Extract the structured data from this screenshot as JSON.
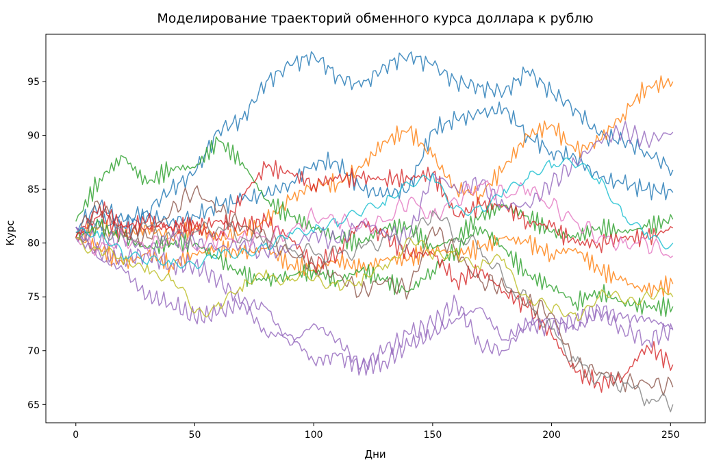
{
  "chart_data": {
    "type": "line",
    "title": "Моделирование траекторий обменного курса доллара к рублю",
    "xlabel": "Дни",
    "ylabel": "Курс",
    "xlim": [
      -12.6,
      264.6
    ],
    "ylim": [
      63.3,
      99.4
    ],
    "xticks": [
      0,
      50,
      100,
      150,
      200,
      250
    ],
    "yticks": [
      65,
      70,
      75,
      80,
      85,
      90,
      95
    ],
    "grid": false,
    "legend": "none",
    "x": [
      0,
      10,
      20,
      30,
      40,
      50,
      60,
      70,
      80,
      90,
      100,
      110,
      120,
      130,
      140,
      150,
      160,
      170,
      180,
      190,
      200,
      210,
      220,
      230,
      240,
      251
    ],
    "series": [
      {
        "color": "#1f77b4",
        "values": [
          81.5,
          83.5,
          82.0,
          83.0,
          85.0,
          86.5,
          90.5,
          91.5,
          95.0,
          96.5,
          97.5,
          95.5,
          94.5,
          96.5,
          97.5,
          96.5,
          95.0,
          94.5,
          94.0,
          96.0,
          94.0,
          92.5,
          90.0,
          89.5,
          88.5,
          86.8
        ]
      },
      {
        "color": "#1f77b4",
        "values": [
          80.5,
          82.0,
          81.5,
          82.5,
          82.0,
          82.5,
          83.5,
          84.0,
          84.5,
          85.5,
          87.5,
          87.5,
          85.0,
          84.5,
          85.0,
          90.5,
          91.5,
          92.0,
          92.5,
          90.0,
          88.5,
          88.0,
          86.0,
          85.5,
          85.0,
          84.7
        ]
      },
      {
        "color": "#ff7f0e",
        "values": [
          80.5,
          81.5,
          80.5,
          81.5,
          80.5,
          81.5,
          80.5,
          81.0,
          82.0,
          84.0,
          85.5,
          85.5,
          87.0,
          89.5,
          90.5,
          88.0,
          85.0,
          84.5,
          87.0,
          90.0,
          91.0,
          88.5,
          89.5,
          92.0,
          94.5,
          95.0
        ]
      },
      {
        "color": "#ff7f0e",
        "values": [
          80.5,
          79.5,
          78.0,
          79.0,
          78.0,
          79.0,
          79.5,
          79.0,
          79.5,
          78.0,
          77.5,
          78.5,
          77.5,
          78.5,
          78.5,
          79.5,
          79.0,
          79.5,
          80.5,
          80.0,
          79.0,
          79.5,
          77.5,
          76.5,
          75.5,
          76.2
        ]
      },
      {
        "color": "#2ca02c",
        "values": [
          82.0,
          86.0,
          88.0,
          85.5,
          87.0,
          87.0,
          89.5,
          87.5,
          84.0,
          82.5,
          81.5,
          80.5,
          80.0,
          81.5,
          81.5,
          79.5,
          80.5,
          82.5,
          83.5,
          82.5,
          81.0,
          80.5,
          81.5,
          81.0,
          81.5,
          82.2
        ]
      },
      {
        "color": "#2ca02c",
        "values": [
          80.5,
          81.5,
          80.5,
          79.5,
          80.0,
          80.0,
          78.5,
          77.0,
          76.5,
          77.0,
          77.5,
          76.5,
          77.5,
          76.5,
          75.5,
          77.5,
          79.5,
          81.5,
          79.5,
          77.0,
          76.0,
          74.5,
          75.5,
          74.5,
          74.0,
          74.1
        ]
      },
      {
        "color": "#d62728",
        "values": [
          80.5,
          83.5,
          81.5,
          82.0,
          81.5,
          81.5,
          80.5,
          84.5,
          87.0,
          86.5,
          85.5,
          86.0,
          86.0,
          86.0,
          86.0,
          86.5,
          82.5,
          83.5,
          83.5,
          82.0,
          81.5,
          80.0,
          80.0,
          80.5,
          80.5,
          81.4
        ]
      },
      {
        "color": "#d62728",
        "values": [
          80.5,
          82.5,
          81.0,
          81.5,
          81.5,
          81.5,
          82.0,
          81.5,
          82.0,
          80.5,
          78.0,
          79.0,
          82.0,
          80.5,
          79.0,
          79.0,
          76.5,
          77.5,
          75.5,
          74.0,
          71.5,
          68.0,
          67.0,
          67.5,
          70.5,
          68.7
        ]
      },
      {
        "color": "#9467bd",
        "values": [
          81.5,
          78.5,
          77.5,
          75.0,
          74.5,
          73.0,
          73.5,
          74.5,
          71.5,
          71.5,
          69.0,
          69.5,
          68.5,
          69.0,
          70.5,
          71.5,
          73.0,
          74.0,
          71.0,
          72.5,
          72.0,
          73.0,
          74.0,
          73.0,
          73.0,
          72.1
        ]
      },
      {
        "color": "#9467bd",
        "values": [
          80.5,
          79.0,
          78.5,
          79.0,
          78.0,
          78.0,
          76.5,
          74.5,
          74.0,
          70.5,
          72.5,
          71.0,
          68.5,
          70.0,
          71.5,
          72.5,
          74.5,
          70.5,
          70.0,
          72.5,
          73.0,
          72.0,
          73.5,
          72.0,
          71.0,
          71.9
        ]
      },
      {
        "color": "#9467bd",
        "values": [
          81.5,
          80.0,
          80.5,
          79.5,
          80.5,
          80.0,
          79.5,
          80.0,
          79.0,
          79.5,
          81.0,
          80.0,
          82.0,
          81.0,
          80.5,
          86.5,
          85.0,
          85.5,
          83.5,
          83.5,
          85.5,
          87.5,
          89.5,
          90.5,
          89.5,
          90.3
        ]
      },
      {
        "color": "#8c564b",
        "values": [
          81.0,
          83.5,
          81.0,
          80.5,
          83.0,
          85.0,
          83.0,
          81.5,
          80.5,
          79.0,
          78.0,
          77.0,
          75.5,
          76.5,
          75.5,
          81.5,
          79.0,
          76.5,
          76.0,
          74.5,
          73.5,
          68.5,
          68.0,
          67.0,
          67.0,
          66.6
        ]
      },
      {
        "color": "#e377c2",
        "values": [
          80.5,
          79.5,
          80.5,
          79.5,
          80.5,
          79.5,
          80.5,
          80.5,
          80.5,
          81.0,
          82.5,
          82.0,
          81.5,
          82.0,
          84.0,
          82.5,
          84.0,
          85.5,
          84.5,
          85.0,
          83.5,
          82.0,
          80.5,
          80.0,
          80.0,
          78.8
        ]
      },
      {
        "color": "#7f7f7f",
        "values": [
          80.5,
          81.5,
          80.5,
          81.5,
          80.5,
          81.0,
          81.5,
          80.5,
          80.5,
          79.5,
          79.0,
          79.0,
          79.5,
          80.5,
          80.0,
          83.0,
          80.5,
          79.5,
          76.5,
          74.5,
          72.0,
          69.0,
          67.5,
          67.0,
          65.5,
          65.0
        ]
      },
      {
        "color": "#bcbd22",
        "values": [
          80.5,
          79.5,
          78.0,
          78.0,
          76.5,
          73.5,
          74.5,
          75.5,
          77.5,
          76.5,
          76.5,
          76.5,
          76.0,
          78.0,
          80.5,
          78.5,
          79.5,
          77.5,
          78.5,
          75.0,
          73.5,
          73.5,
          75.0,
          74.5,
          75.5,
          75.0
        ]
      },
      {
        "color": "#17becf",
        "values": [
          81.0,
          80.5,
          78.5,
          78.0,
          78.0,
          78.0,
          79.5,
          79.5,
          80.0,
          81.0,
          81.0,
          81.5,
          82.5,
          83.5,
          85.5,
          86.5,
          83.5,
          83.5,
          85.0,
          86.0,
          87.0,
          87.0,
          85.5,
          82.5,
          81.0,
          80.0
        ]
      }
    ]
  }
}
